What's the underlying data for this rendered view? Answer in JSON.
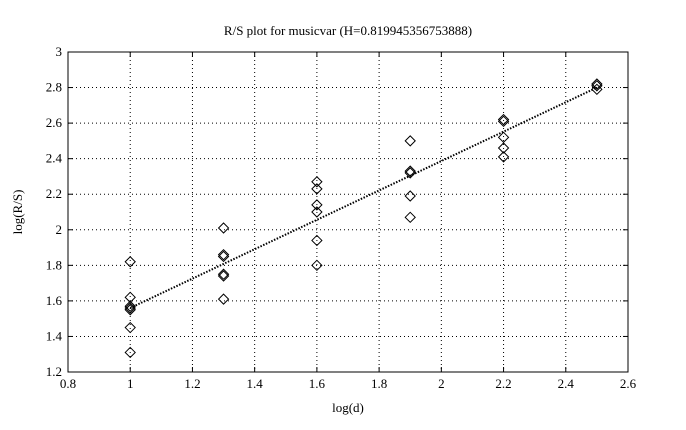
{
  "chart_data": {
    "type": "scatter",
    "title": "R/S plot for musicvar (H=0.819945356753888)",
    "x_label": "log(d)",
    "y_label": "log(R/S)",
    "x": [
      1,
      1,
      1,
      1,
      1,
      1,
      1,
      1.3,
      1.3,
      1.3,
      1.3,
      1.3,
      1.3,
      1.6,
      1.6,
      1.6,
      1.6,
      1.6,
      1.6,
      1.9,
      1.9,
      1.9,
      1.9,
      1.9,
      2.2,
      2.2,
      2.2,
      2.2,
      2.2,
      2.5,
      2.5,
      2.5
    ],
    "y": [
      1.82,
      1.62,
      1.57,
      1.55,
      1.56,
      1.45,
      1.31,
      2.01,
      1.86,
      1.85,
      1.75,
      1.74,
      1.61,
      2.27,
      2.23,
      2.14,
      2.1,
      1.94,
      1.8,
      2.5,
      2.33,
      2.32,
      2.19,
      2.07,
      2.62,
      2.61,
      2.52,
      2.46,
      2.41,
      2.82,
      2.81,
      2.79
    ],
    "color": "#000000",
    "fit": {
      "x": [
        1,
        2.5
      ],
      "y": [
        1.56,
        2.8
      ],
      "color": "#000000"
    },
    "xlim": [
      0.8,
      2.6
    ],
    "ylim": [
      1.2,
      3
    ],
    "xticks": [
      0.8,
      1,
      1.2,
      1.4,
      1.6,
      1.8,
      2,
      2.2,
      2.4,
      2.6
    ],
    "yticks": [
      1.2,
      1.4,
      1.6,
      1.8,
      2,
      2.2,
      2.4,
      2.6,
      2.8,
      3
    ],
    "grid": true
  }
}
